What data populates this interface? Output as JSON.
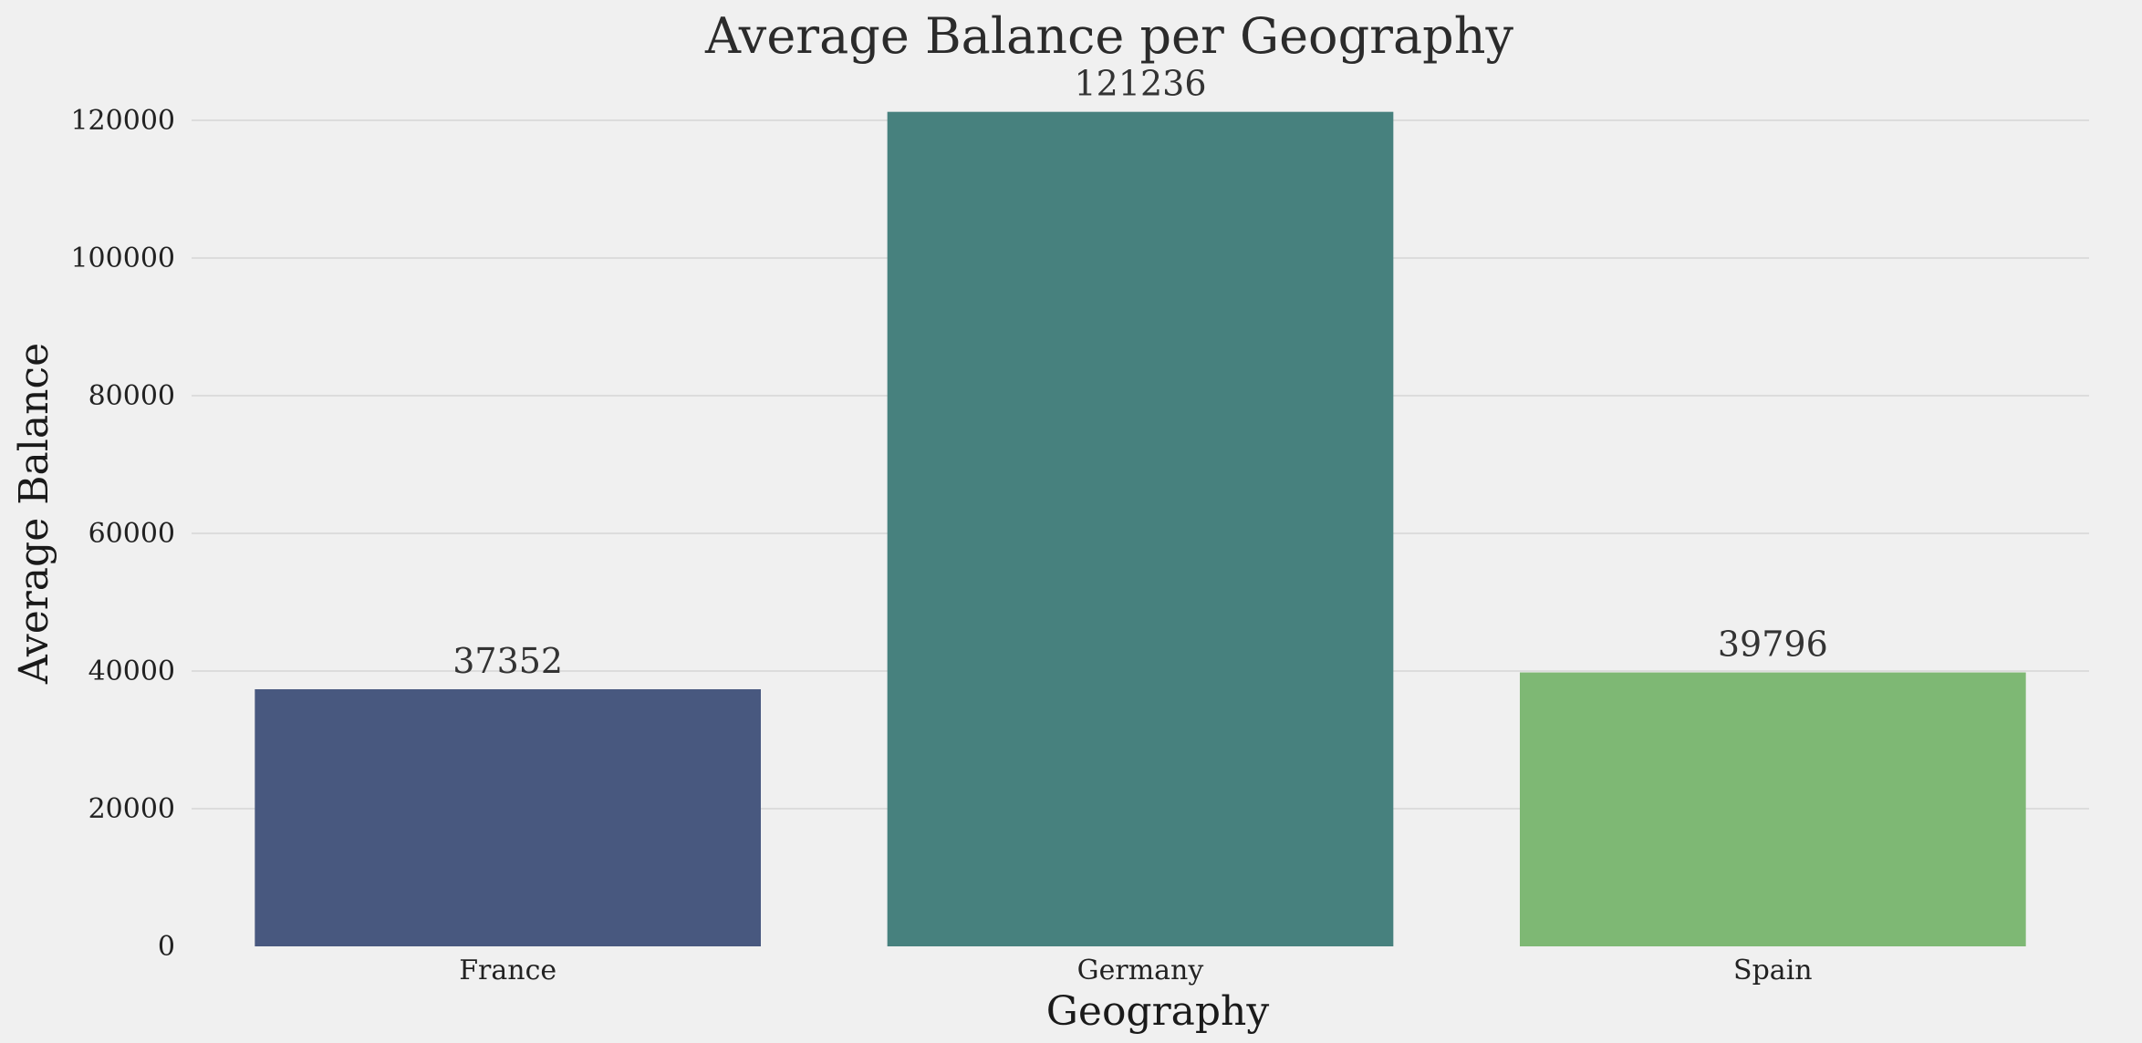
{
  "chart_data": {
    "type": "bar",
    "title": "Average Balance per Geography",
    "xlabel": "Geography",
    "ylabel": "Average Balance",
    "categories": [
      "France",
      "Germany",
      "Spain"
    ],
    "values": [
      37352,
      121236,
      39796
    ],
    "data_labels": [
      "37352",
      "121236",
      "39796"
    ],
    "bar_colors": [
      "#48587f",
      "#47817e",
      "#7eb874"
    ],
    "ylim": [
      0,
      120000
    ],
    "yticks": [
      0,
      20000,
      40000,
      60000,
      80000,
      100000,
      120000
    ],
    "ytick_labels": [
      "0",
      "20000",
      "40000",
      "60000",
      "80000",
      "100000",
      "120000"
    ],
    "grid": true,
    "legend": "none"
  }
}
